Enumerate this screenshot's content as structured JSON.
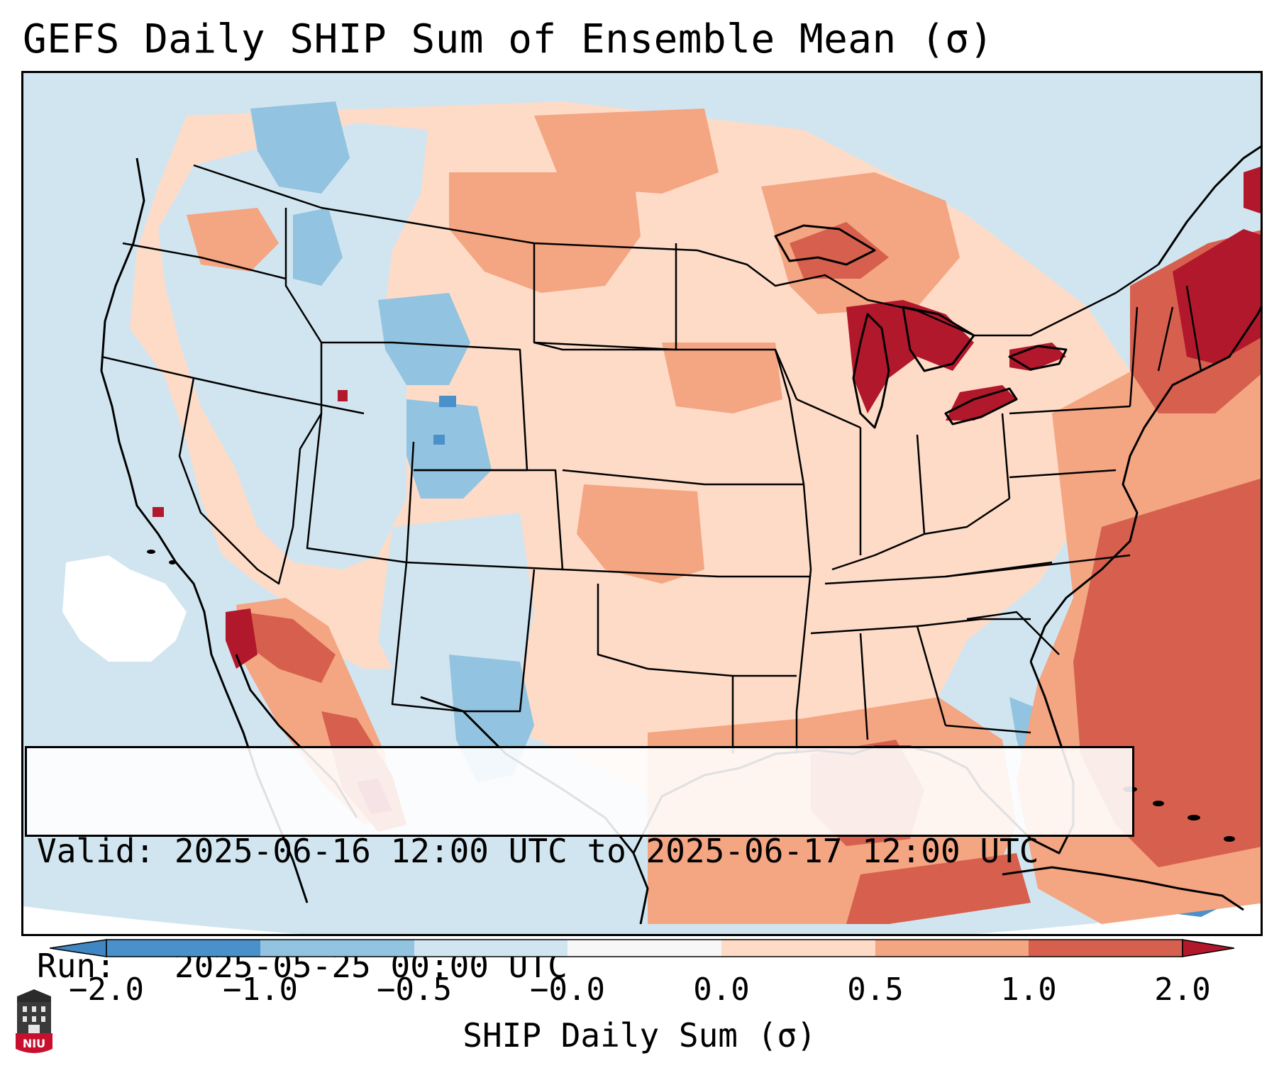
{
  "title": "GEFS Daily SHIP Sum of Ensemble Mean (σ)",
  "info_box": {
    "valid_label": "Valid:",
    "valid_value": "2025-06-16 12:00 UTC to 2025-06-17 12:00 UTC",
    "run_label": "Run:",
    "run_value": "2025-05-25 00:00 UTC"
  },
  "colorbar": {
    "label": "SHIP Daily Sum (σ)",
    "ticks": [
      "−2.0",
      "−1.0",
      "−0.5",
      "−0.0",
      "0.0",
      "0.5",
      "1.0",
      "2.0"
    ],
    "colors": {
      "below_min": "#3f86c2",
      "b1": "#4a91cb",
      "b2": "#92c3e0",
      "b3": "#d1e5f0",
      "b4": "#f7f7f7",
      "b5": "#fddbc7",
      "b6": "#f4a582",
      "b7": "#d6604d",
      "above_max": "#b2182b"
    }
  },
  "logo": {
    "text": "NIU"
  },
  "map": {
    "region": "Contiguous United States",
    "colors": {
      "ocean": "#d1e5f0",
      "light_red": "#fddbc7",
      "medium_red": "#f4a582",
      "strong_red": "#d6604d",
      "dark_red": "#b2182b",
      "light_blue": "#d1e5f0",
      "medium_blue": "#92c3e0",
      "strong_blue": "#4a91cb",
      "neutral": "#f7f7f7",
      "outline": "#000000"
    }
  }
}
